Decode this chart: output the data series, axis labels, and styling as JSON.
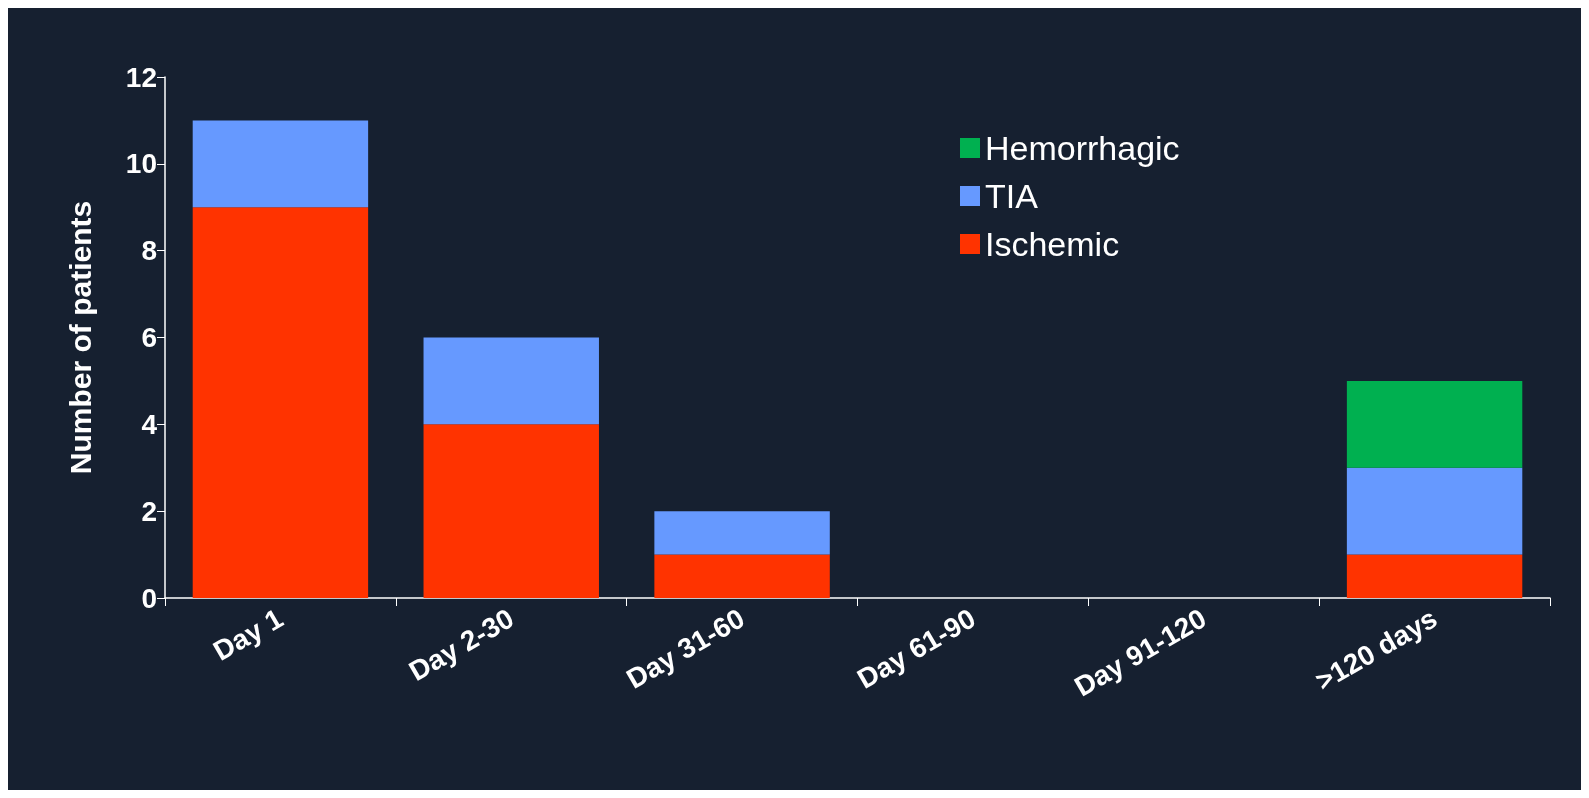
{
  "chart_data": {
    "type": "bar",
    "ylabel": "Number of patients",
    "categories": [
      "Day 1",
      "Day 2-30",
      "Day 31-60",
      "Day 61-90",
      "Day 91-120",
      ">120 days"
    ],
    "series": [
      {
        "name": "Ischemic",
        "color": "#ff3300",
        "values": [
          9,
          4,
          1,
          0,
          0,
          1
        ]
      },
      {
        "name": "TIA",
        "color": "#6699ff",
        "values": [
          2,
          2,
          1,
          0,
          0,
          2
        ]
      },
      {
        "name": "Hemorrhagic",
        "color": "#00b050",
        "values": [
          0,
          0,
          0,
          0,
          0,
          2
        ]
      }
    ],
    "stacked": true,
    "ylim": [
      0,
      12
    ],
    "yticks": [
      0,
      2,
      4,
      6,
      8,
      10,
      12
    ],
    "grid": false,
    "legend": "top right"
  }
}
